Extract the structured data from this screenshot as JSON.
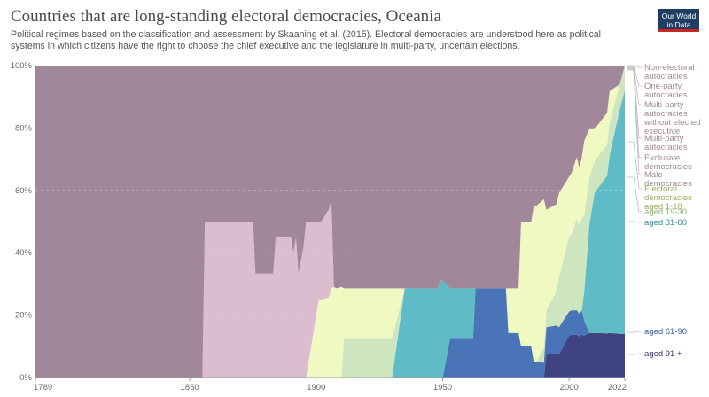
{
  "header": {
    "title": "Countries that are long-standing electoral democracies, Oceania",
    "subtitle": "Political regimes based on the classification and assessment by Skaaning et al. (2015). Electoral democracies are understood here as political systems in which citizens have the right to choose the chief executive and the legislature in multi-party, uncertain elections.",
    "logo": "Our World in Data"
  },
  "colors": {
    "non_electoral": "#a0889a",
    "one_party": "#ad92a8",
    "multi_party_no_exec": "#b798b1",
    "multi_party": "#c6a5be",
    "exclusive": "#d2b0c7",
    "male": "#dcbdcf",
    "electoral_1_18": "#f1f9c3",
    "aged_19_30": "#cde6bf",
    "aged_31_60": "#5fbcc6",
    "aged_61_90": "#4a74b8",
    "aged_91_plus": "#3f4480"
  },
  "chart_data": {
    "type": "area",
    "stacked": true,
    "title": "Countries that are long-standing electoral democracies, Oceania",
    "xlim": [
      1789,
      2022
    ],
    "ylim": [
      0,
      100
    ],
    "y_ticks": [
      "0%",
      "20%",
      "40%",
      "60%",
      "80%",
      "100%"
    ],
    "x_ticks": [
      "1789",
      "1850",
      "1900",
      "1950",
      "2000",
      "2022"
    ],
    "x": [
      1789,
      1845,
      1846,
      1847,
      1848,
      1855,
      1856,
      1867,
      1868,
      1875,
      1876,
      1883,
      1884,
      1890,
      1891,
      1892,
      1893,
      1895,
      1896,
      1901,
      1902,
      1905,
      1906,
      1907,
      1908,
      1910,
      1911,
      1915,
      1916,
      1920,
      1921,
      1925,
      1926,
      1930,
      1935,
      1936,
      1945,
      1946,
      1948,
      1949,
      1950,
      1953,
      1954,
      1955,
      1960,
      1961,
      1962,
      1963,
      1965,
      1966,
      1970,
      1971,
      1975,
      1976,
      1977,
      1980,
      1981,
      1982,
      1983,
      1985,
      1986,
      1987,
      1990,
      1991,
      1995,
      1996,
      2000,
      2001,
      2003,
      2004,
      2005,
      2006,
      2008,
      2010,
      2015,
      2016,
      2020,
      2022
    ],
    "series": [
      {
        "name": "Non-electoral autocracies",
        "values": [
          100,
          100,
          50,
          60,
          66,
          66,
          33,
          33,
          33,
          33,
          40,
          40,
          33,
          33,
          36,
          33,
          40,
          35,
          30,
          40,
          40,
          36,
          33,
          44,
          45,
          44,
          45,
          45,
          45,
          45,
          45,
          45,
          45,
          45,
          45,
          45,
          45,
          45,
          45,
          40,
          40,
          45,
          45,
          45,
          45,
          45,
          45,
          45,
          45,
          45,
          45,
          45,
          45,
          50,
          50,
          50,
          50,
          50,
          50,
          50,
          45,
          45,
          45,
          43,
          40,
          38,
          37,
          35,
          30,
          35,
          30,
          25,
          20,
          20,
          15,
          8,
          6,
          0
        ]
      },
      {
        "name": "One-party autocracies",
        "values": [
          0,
          0,
          0,
          0,
          0,
          0,
          0,
          0,
          0,
          0,
          0,
          0,
          0,
          0,
          0,
          0,
          0,
          0,
          0,
          0,
          0,
          0,
          0,
          0,
          0,
          0,
          0,
          0,
          0,
          0,
          0,
          0,
          0,
          0,
          0,
          0,
          0,
          0,
          0,
          0,
          0,
          0,
          0,
          0,
          0,
          0,
          0,
          0,
          0,
          0,
          0,
          0,
          0,
          0,
          0,
          0,
          0,
          0,
          0,
          0,
          0,
          0,
          0,
          0,
          0,
          0,
          0,
          0,
          0,
          0,
          0,
          0,
          0,
          0,
          0,
          0,
          0,
          0
        ]
      },
      {
        "name": "Multi-party autocracies without elected executive",
        "values": [
          0,
          0,
          0,
          0,
          0,
          0,
          0,
          0,
          0,
          0,
          0,
          0,
          0,
          0,
          0,
          0,
          0,
          0,
          0,
          0,
          0,
          0,
          0,
          0,
          0,
          0,
          0,
          0,
          0,
          0,
          0,
          0,
          0,
          0,
          0,
          0,
          0,
          0,
          0,
          0,
          0,
          0,
          0,
          0,
          0,
          0,
          0,
          0,
          0,
          0,
          0,
          0,
          0,
          0,
          0,
          0,
          0,
          0,
          0,
          0,
          0,
          0,
          0,
          0,
          0,
          0,
          0,
          0,
          0,
          0,
          0,
          0,
          0,
          0,
          0,
          0,
          0,
          0
        ]
      },
      {
        "name": "Multi-party autocracies",
        "values": [
          0,
          0,
          0,
          0,
          0,
          0,
          0,
          0,
          0,
          0,
          0,
          0,
          0,
          0,
          0,
          0,
          0,
          0,
          0,
          0,
          0,
          0,
          0,
          0,
          0,
          0,
          0,
          0,
          0,
          0,
          0,
          0,
          0,
          0,
          0,
          0,
          0,
          0,
          0,
          0,
          0,
          0,
          0,
          0,
          0,
          0,
          0,
          0,
          0,
          0,
          0,
          0,
          0,
          0,
          0,
          0,
          0,
          0,
          0,
          0,
          0,
          0,
          0,
          0,
          0,
          0,
          0,
          0,
          0,
          0,
          0,
          0,
          0,
          0,
          0,
          0,
          0,
          0
        ]
      },
      {
        "name": "Exclusive democracies",
        "values": [
          0,
          0,
          0,
          0,
          0,
          0,
          0,
          0,
          0,
          0,
          0,
          0,
          0,
          0,
          0,
          0,
          0,
          0,
          0,
          0,
          0,
          0,
          0,
          0,
          0,
          0,
          0,
          0,
          0,
          0,
          0,
          0,
          0,
          0,
          0,
          0,
          0,
          0,
          0,
          0,
          0,
          0,
          0,
          0,
          0,
          0,
          0,
          0,
          0,
          0,
          0,
          0,
          0,
          0,
          0,
          0,
          0,
          0,
          0,
          0,
          0,
          0,
          0,
          0,
          0,
          0,
          0,
          0,
          0,
          0,
          0,
          0,
          0,
          0,
          0,
          0,
          0,
          0
        ]
      },
      {
        "name": "Male democracies",
        "values": [
          0,
          0,
          0,
          0,
          0,
          0,
          33,
          33,
          33,
          33,
          20,
          20,
          27,
          27,
          24,
          27,
          20,
          25,
          30,
          20,
          20,
          22,
          22,
          0,
          0,
          0,
          0,
          0,
          0,
          0,
          0,
          0,
          0,
          0,
          0,
          0,
          0,
          0,
          0,
          0,
          0,
          0,
          0,
          0,
          0,
          0,
          0,
          0,
          0,
          0,
          0,
          0,
          0,
          0,
          0,
          0,
          0,
          0,
          0,
          0,
          0,
          0,
          0,
          0,
          0,
          0,
          0,
          0,
          0,
          0,
          0,
          0,
          0,
          0,
          0,
          0,
          0,
          0
        ]
      },
      {
        "name": "Electoral democracies aged 1-18",
        "values": [
          0,
          0,
          0,
          0,
          0,
          0,
          0,
          0,
          0,
          0,
          0,
          0,
          0,
          0,
          0,
          0,
          0,
          0,
          0,
          20,
          20,
          20,
          22,
          18,
          18,
          18,
          10,
          10,
          10,
          10,
          10,
          10,
          10,
          10,
          0,
          0,
          0,
          0,
          0,
          0,
          0,
          0,
          0,
          0,
          0,
          0,
          0,
          0,
          0,
          0,
          0,
          0,
          0,
          10,
          10,
          10,
          40,
          40,
          40,
          40,
          50,
          50,
          50,
          30,
          25,
          25,
          20,
          20,
          20,
          20,
          20,
          25,
          15,
          10,
          10,
          10,
          0,
          0
        ]
      },
      {
        "name": "aged 19-30",
        "values": [
          0,
          0,
          0,
          0,
          0,
          0,
          0,
          0,
          0,
          0,
          0,
          0,
          0,
          0,
          0,
          0,
          0,
          0,
          0,
          0,
          0,
          0,
          0,
          0,
          0,
          0,
          8,
          8,
          8,
          8,
          8,
          8,
          8,
          8,
          0,
          0,
          0,
          0,
          0,
          0,
          0,
          0,
          0,
          0,
          0,
          0,
          0,
          0,
          0,
          0,
          0,
          0,
          0,
          0,
          0,
          0,
          0,
          0,
          0,
          0,
          0,
          0,
          5,
          5,
          10,
          15,
          25,
          25,
          30,
          30,
          30,
          25,
          15,
          10,
          10,
          10,
          8,
          8
        ]
      },
      {
        "name": "aged 31-60",
        "values": [
          0,
          0,
          0,
          0,
          0,
          0,
          0,
          0,
          0,
          0,
          0,
          0,
          0,
          0,
          0,
          0,
          0,
          0,
          0,
          0,
          0,
          0,
          0,
          0,
          0,
          0,
          0,
          0,
          0,
          0,
          0,
          0,
          0,
          0,
          18,
          18,
          18,
          18,
          18,
          18,
          18,
          10,
          10,
          10,
          10,
          10,
          10,
          0,
          0,
          0,
          0,
          0,
          0,
          0,
          0,
          0,
          0,
          0,
          0,
          0,
          0,
          0,
          0,
          0,
          0,
          0,
          0,
          0,
          0,
          0,
          0,
          10,
          34,
          44,
          50,
          56,
          72,
          78
        ]
      },
      {
        "name": "aged 61-90",
        "values": [
          0,
          0,
          0,
          0,
          0,
          0,
          0,
          0,
          0,
          0,
          0,
          0,
          0,
          0,
          0,
          0,
          0,
          0,
          0,
          0,
          0,
          0,
          0,
          0,
          0,
          0,
          0,
          0,
          0,
          0,
          0,
          0,
          0,
          0,
          0,
          0,
          0,
          0,
          0,
          0,
          0,
          8,
          8,
          8,
          8,
          8,
          8,
          18,
          18,
          18,
          18,
          18,
          18,
          10,
          10,
          10,
          10,
          10,
          10,
          10,
          5,
          5,
          5,
          8,
          8,
          8,
          8,
          8,
          8,
          8,
          8,
          5,
          0,
          0,
          0,
          0,
          0,
          0
        ]
      },
      {
        "name": "aged 91 +",
        "values": [
          0,
          0,
          0,
          0,
          0,
          0,
          0,
          0,
          0,
          0,
          0,
          0,
          0,
          0,
          0,
          0,
          0,
          0,
          0,
          0,
          0,
          0,
          0,
          0,
          0,
          0,
          0,
          0,
          0,
          0,
          0,
          0,
          0,
          0,
          0,
          0,
          0,
          0,
          0,
          0,
          0,
          0,
          0,
          0,
          0,
          0,
          0,
          0,
          0,
          0,
          0,
          0,
          0,
          0,
          0,
          0,
          0,
          0,
          0,
          0,
          0,
          0,
          0,
          7,
          7,
          7,
          14,
          14,
          14,
          14,
          14,
          14,
          14,
          14,
          14,
          14,
          14,
          14
        ]
      }
    ],
    "legend": [
      {
        "key": "non_electoral",
        "lines": [
          "Non-electoral",
          "autocracies"
        ],
        "color": "#a0889a"
      },
      {
        "key": "one_party",
        "lines": [
          "One-party",
          "autocracies"
        ],
        "color": "#a0889a"
      },
      {
        "key": "multi_no_exec",
        "lines": [
          "Multi-party",
          "autocracies",
          "without elected",
          "executive"
        ],
        "color": "#a0889a"
      },
      {
        "key": "multi",
        "lines": [
          "Multi-party",
          "autocracies"
        ],
        "color": "#a0889a"
      },
      {
        "key": "exclusive",
        "lines": [
          "Exclusive",
          "democracies"
        ],
        "color": "#a0889a"
      },
      {
        "key": "male",
        "lines": [
          "Male",
          "democracies"
        ],
        "color": "#a0889a"
      },
      {
        "key": "electoral",
        "lines": [
          "Electoral",
          "democracies",
          "aged 1-18"
        ],
        "color": "#9aae5a"
      },
      {
        "key": "aged_19_30",
        "lines": [
          "aged 19-30"
        ],
        "color": "#8fb36e"
      },
      {
        "key": "aged_31_60",
        "lines": [
          "aged 31-60"
        ],
        "color": "#2f8f9d"
      },
      {
        "key": "aged_61_90",
        "lines": [
          "aged 61-90"
        ],
        "color": "#2f5d9e"
      },
      {
        "key": "aged_91_plus",
        "lines": [
          "aged 91 +"
        ],
        "color": "#2d3470"
      }
    ]
  }
}
